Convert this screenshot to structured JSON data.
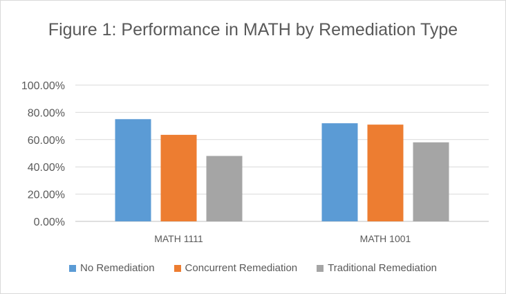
{
  "chart_data": {
    "type": "bar",
    "title": "Figure 1: Performance in MATH by Remediation Type",
    "categories": [
      "MATH 1111",
      "MATH 1001"
    ],
    "series": [
      {
        "name": "No Remediation",
        "color": "#5b9bd5",
        "values": [
          0.75,
          0.72
        ]
      },
      {
        "name": "Concurrent Remediation",
        "color": "#ed7d31",
        "values": [
          0.635,
          0.71
        ]
      },
      {
        "name": "Traditional Remediation",
        "color": "#a5a5a5",
        "values": [
          0.48,
          0.58
        ]
      }
    ],
    "ylim": [
      0,
      1
    ],
    "yticks": [
      0,
      0.2,
      0.4,
      0.6,
      0.8,
      1.0
    ],
    "ytick_labels": [
      "0.00%",
      "20.00%",
      "40.00%",
      "60.00%",
      "80.00%",
      "100.00%"
    ],
    "grid": true,
    "legend_position": "bottom",
    "xlabel": "",
    "ylabel": ""
  }
}
